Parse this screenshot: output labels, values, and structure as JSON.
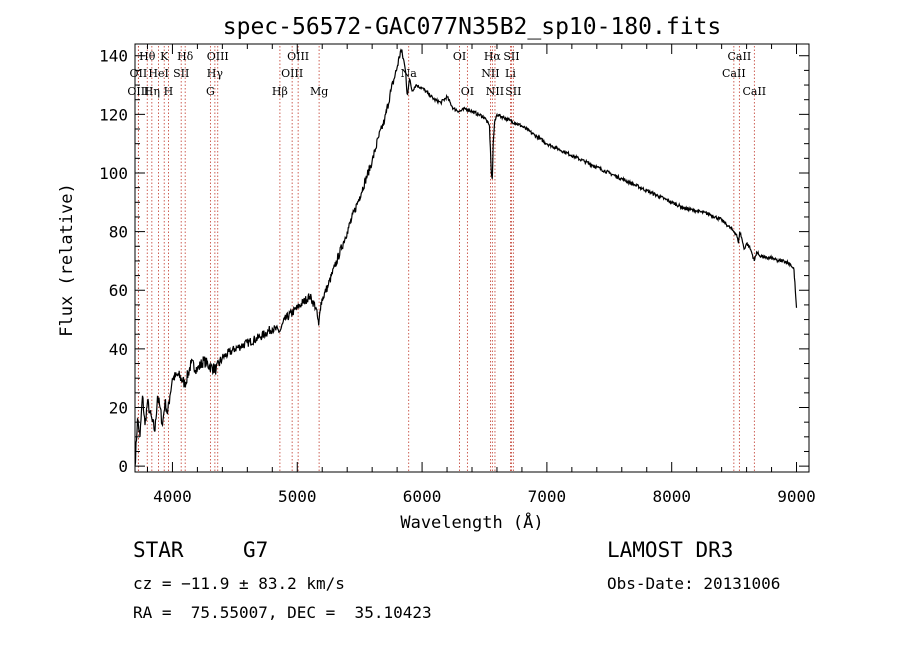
{
  "chart_data": {
    "type": "line",
    "title": "spec-56572-GAC077N35B2_sp10-180.fits",
    "xlabel": "Wavelength (Å)",
    "ylabel": "Flux (relative)",
    "xlim": [
      3700,
      9100
    ],
    "ylim": [
      -2,
      144
    ],
    "xticks": [
      4000,
      5000,
      6000,
      7000,
      8000,
      9000
    ],
    "yticks": [
      0,
      20,
      40,
      60,
      80,
      100,
      120,
      140
    ],
    "xtick_labels": [
      "4000",
      "5000",
      "6000",
      "7000",
      "8000",
      "9000"
    ],
    "ytick_labels": [
      "0",
      "20",
      "40",
      "60",
      "80",
      "100",
      "120",
      "140"
    ],
    "series": [
      {
        "name": "flux",
        "x": [
          3700,
          3720,
          3740,
          3760,
          3780,
          3800,
          3820,
          3840,
          3860,
          3880,
          3900,
          3920,
          3940,
          3960,
          3980,
          4000,
          4050,
          4100,
          4150,
          4200,
          4250,
          4300,
          4350,
          4400,
          4500,
          4600,
          4700,
          4800,
          4861,
          4900,
          5000,
          5100,
          5150,
          5172,
          5190,
          5250,
          5300,
          5400,
          5500,
          5600,
          5650,
          5700,
          5750,
          5800,
          5830,
          5850,
          5870,
          5880,
          5893,
          5900,
          5920,
          5950,
          6000,
          6050,
          6100,
          6150,
          6200,
          6250,
          6300,
          6350,
          6400,
          6450,
          6500,
          6540,
          6555,
          6563,
          6570,
          6580,
          6600,
          6650,
          6700,
          6750,
          6800,
          6900,
          7000,
          7100,
          7200,
          7300,
          7400,
          7500,
          7600,
          7700,
          7800,
          7900,
          8000,
          8100,
          8200,
          8300,
          8400,
          8450,
          8500,
          8520,
          8535,
          8545,
          8560,
          8580,
          8600,
          8620,
          8640,
          8662,
          8680,
          8700,
          8750,
          8800,
          8850,
          8900,
          8950,
          8980,
          8990,
          9000
        ],
        "values": [
          0,
          16,
          10,
          24,
          14,
          22,
          18,
          15,
          12,
          24,
          20,
          14,
          22,
          18,
          24,
          30,
          31,
          28,
          35,
          33,
          36,
          34,
          33,
          37,
          40,
          42,
          44,
          47,
          46,
          50,
          54,
          58,
          54,
          48,
          56,
          62,
          68,
          80,
          92,
          104,
          112,
          118,
          128,
          136,
          142,
          139,
          134,
          127,
          130,
          132,
          128,
          130,
          129,
          127,
          125,
          124,
          126,
          122,
          121,
          122,
          121,
          120,
          119,
          116,
          100,
          98,
          110,
          117,
          120,
          119,
          118,
          117,
          116,
          113,
          110,
          108,
          106,
          104,
          102,
          100,
          98,
          96,
          94,
          92,
          90,
          88,
          87,
          86,
          84,
          82,
          80,
          79,
          76,
          80,
          78,
          74,
          76,
          75,
          73,
          70,
          73,
          72,
          71,
          71,
          70,
          70,
          69,
          67,
          60,
          54
        ]
      }
    ],
    "line_markers": [
      {
        "label": "Hθ",
        "x": 3798,
        "row": 0
      },
      {
        "label": "OII",
        "x": 3727,
        "row": 1
      },
      {
        "label": "OIII",
        "x": 3727,
        "row": 2
      },
      {
        "label": "K",
        "x": 3934,
        "row": 0
      },
      {
        "label": "HeI",
        "x": 3889,
        "row": 1
      },
      {
        "label": "Hη",
        "x": 3835,
        "row": 2
      },
      {
        "label": "SII",
        "x": 4070,
        "row": 1
      },
      {
        "label": "H",
        "x": 3968,
        "row": 2
      },
      {
        "label": "Hδ",
        "x": 4102,
        "row": 0
      },
      {
        "label": "OIII",
        "x": 4363,
        "row": 0
      },
      {
        "label": "Hγ",
        "x": 4340,
        "row": 1
      },
      {
        "label": "G",
        "x": 4304,
        "row": 2
      },
      {
        "label": "OIII",
        "x": 5007,
        "row": 0
      },
      {
        "label": "OIII",
        "x": 4959,
        "row": 1
      },
      {
        "label": "Hβ",
        "x": 4861,
        "row": 2
      },
      {
        "label": "Mg",
        "x": 5175,
        "row": 2
      },
      {
        "label": "Na",
        "x": 5893,
        "row": 1
      },
      {
        "label": "OI",
        "x": 6300,
        "row": 0
      },
      {
        "label": "OI",
        "x": 6363,
        "row": 2
      },
      {
        "label": "Hα",
        "x": 6563,
        "row": 0
      },
      {
        "label": "SII",
        "x": 6716,
        "row": 0
      },
      {
        "label": "NII",
        "x": 6548,
        "row": 1
      },
      {
        "label": "Li",
        "x": 6708,
        "row": 1
      },
      {
        "label": "NII",
        "x": 6584,
        "row": 2
      },
      {
        "label": "SII",
        "x": 6731,
        "row": 2
      },
      {
        "label": "CaII",
        "x": 8542,
        "row": 0
      },
      {
        "label": "CaII",
        "x": 8498,
        "row": 1
      },
      {
        "label": "CaII",
        "x": 8662,
        "row": 2
      }
    ]
  },
  "info": {
    "object_class": "STAR",
    "subclass": "G7",
    "survey": "LAMOST DR3",
    "cz": "cz = −11.9 ± 83.2 km/s",
    "obs_date": "Obs-Date: 20131006",
    "coords": "RA =  75.55007, DEC =  35.10423"
  },
  "colors": {
    "spectrum": "#000000",
    "marker_line": "#c0392b",
    "axes": "#000000"
  }
}
